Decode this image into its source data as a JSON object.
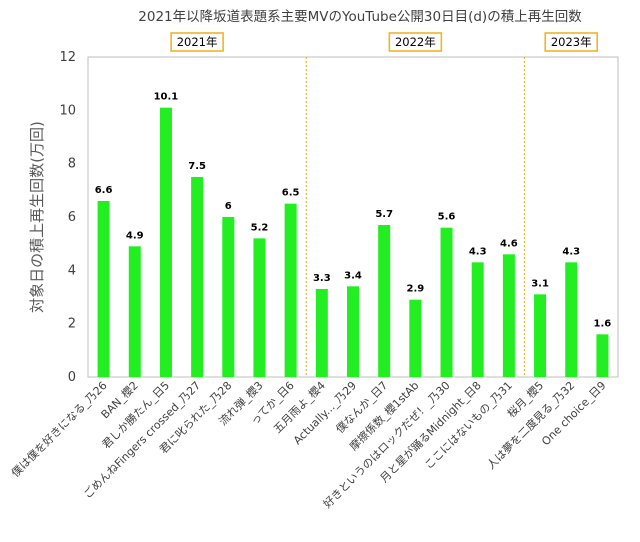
{
  "chart_data": {
    "type": "bar",
    "title": "2021年以降坂道表題系主要MVのYouTube公開30日目(d)の積上再生回数",
    "ylabel": "対象日の積上再生回数(万回)",
    "xlabel": "",
    "ylim": [
      0,
      12
    ],
    "yticks": [
      "0",
      "2",
      "4",
      "6",
      "8",
      "10",
      "12"
    ],
    "grid": false,
    "bar_color": "#22ee22",
    "categories": [
      "僕は僕を好きになる_乃26",
      "BAN_櫻2",
      "君しか勝たん_日5",
      "ごめんねFingers crossed_乃27",
      "君に叱られた_乃28",
      "流れ弾_櫻3",
      "ってか_日6",
      "五月雨よ_櫻4",
      "Actually..._乃29",
      "僕なんか_日7",
      "摩擦係数_櫻1stAb",
      "好きというのはロックだぜ！_乃30",
      "月と星が踊るMidnight_日8",
      "ここにはないもの_乃31",
      "桜月_櫻5",
      "人は夢を二度見る_乃32",
      "One choice_日9"
    ],
    "values": [
      6.6,
      4.9,
      10.1,
      7.5,
      6,
      5.2,
      6.5,
      3.3,
      3.4,
      5.7,
      2.9,
      5.6,
      4.3,
      4.6,
      3.1,
      4.3,
      1.6
    ],
    "data_labels": [
      "6.6",
      "4.9",
      "10.1",
      "7.5",
      "6",
      "5.2",
      "6.5",
      "3.3",
      "3.4",
      "5.7",
      "2.9",
      "5.6",
      "4.3",
      "4.6",
      "3.1",
      "4.3",
      "1.6"
    ],
    "year_groups": [
      {
        "label": "2021年",
        "start": 0,
        "end": 6
      },
      {
        "label": "2022年",
        "start": 7,
        "end": 13
      },
      {
        "label": "2023年",
        "start": 14,
        "end": 16
      }
    ],
    "year_box_color": "#f0b428",
    "divider_color": "#f0b428"
  }
}
